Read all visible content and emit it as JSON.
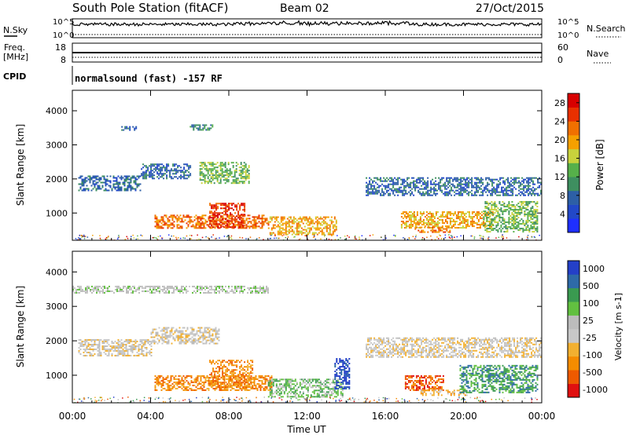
{
  "header": {
    "station": "South Pole Station (fitACF)",
    "beam": "Beam 02",
    "date": "27/Oct/2015"
  },
  "top_panel": {
    "nsky_label": "N.Sky",
    "nsky_ticks": [
      "10^5",
      "10^0"
    ],
    "nsearch_label": "N.Search",
    "nsearch_ticks": [
      "10^5",
      "10^0"
    ],
    "freq_label": "Freq.",
    "freq_unit": "[MHz]",
    "freq_ticks": [
      "18",
      "8"
    ],
    "nave_label": "Nave",
    "nave_ticks": [
      "60",
      "0"
    ],
    "cpid_label": "CPID",
    "cpid_text": "normalsound (fast) -157 RF"
  },
  "colors": {
    "power": [
      "#1e2fff",
      "#2248c8",
      "#2d5fa6",
      "#3e8f60",
      "#56b04a",
      "#c8d23c",
      "#f5a000",
      "#f07000",
      "#e83000",
      "#d80000"
    ],
    "velocity": [
      "#e01010",
      "#ee5a00",
      "#f58c00",
      "#f2b030",
      "#c8c8c8",
      "#bcbcbc",
      "#62c040",
      "#3a9a50",
      "#2e6aa8",
      "#2440c8"
    ]
  },
  "chart_data": [
    {
      "type": "heatmap",
      "panel": "power",
      "xlabel": "Time UT",
      "ylabel": "Slant Range [km]",
      "x_ticks": [
        "00:00",
        "04:00",
        "08:00",
        "12:00",
        "16:00",
        "20:00",
        "00:00"
      ],
      "y_ticks": [
        1000,
        2000,
        3000,
        4000
      ],
      "xlim_hours": [
        0,
        24
      ],
      "ylim_km": [
        200,
        4600
      ],
      "colorbar_label": "Power [dB]",
      "colorbar_ticks": [
        4,
        8,
        12,
        16,
        20,
        24,
        28
      ],
      "colorbar_range": [
        0,
        30
      ],
      "echo_regions": [
        {
          "t0": 0.3,
          "t1": 3.5,
          "r0": 1650,
          "r1": 2100,
          "level": 8
        },
        {
          "t0": 3.5,
          "t1": 6.0,
          "r0": 2000,
          "r1": 2450,
          "level": 8
        },
        {
          "t0": 4.2,
          "t1": 10.0,
          "r0": 550,
          "r1": 950,
          "level": 22
        },
        {
          "t0": 7.0,
          "t1": 8.8,
          "r0": 600,
          "r1": 1300,
          "level": 27
        },
        {
          "t0": 10.0,
          "t1": 13.5,
          "r0": 380,
          "r1": 900,
          "level": 19
        },
        {
          "t0": 6.5,
          "t1": 9.0,
          "r0": 1900,
          "r1": 2500,
          "level": 14
        },
        {
          "t0": 2.5,
          "t1": 3.3,
          "r0": 3450,
          "r1": 3550,
          "level": 7
        },
        {
          "t0": 6.0,
          "t1": 7.2,
          "r0": 3450,
          "r1": 3600,
          "level": 11
        },
        {
          "t0": 15.0,
          "t1": 24.0,
          "r0": 1500,
          "r1": 2050,
          "level": 7
        },
        {
          "t0": 16.8,
          "t1": 21.5,
          "r0": 550,
          "r1": 1050,
          "level": 19
        },
        {
          "t0": 21.0,
          "t1": 23.8,
          "r0": 450,
          "r1": 1350,
          "level": 13
        },
        {
          "t0": 17.5,
          "t1": 19.3,
          "r0": 420,
          "r1": 600,
          "level": 22
        }
      ]
    },
    {
      "type": "heatmap",
      "panel": "velocity",
      "xlabel": "Time UT",
      "ylabel": "Slant Range [km]",
      "x_ticks": [
        "00:00",
        "04:00",
        "08:00",
        "12:00",
        "16:00",
        "20:00",
        "00:00"
      ],
      "y_ticks": [
        1000,
        2000,
        3000,
        4000
      ],
      "xlim_hours": [
        0,
        24
      ],
      "ylim_km": [
        200,
        4600
      ],
      "colorbar_label": "Velocity [m s-1]",
      "colorbar_ticks": [
        "1000",
        "500",
        "100",
        "25",
        "-25",
        "-100",
        "-500",
        "-1000"
      ],
      "echo_regions": [
        {
          "t0": 0.3,
          "t1": 4.0,
          "r0": 1550,
          "r1": 2050,
          "level": 4
        },
        {
          "t0": 4.0,
          "t1": 7.5,
          "r0": 1900,
          "r1": 2400,
          "level": 4
        },
        {
          "t0": 4.2,
          "t1": 10.2,
          "r0": 550,
          "r1": 1000,
          "level": 2
        },
        {
          "t0": 7.0,
          "t1": 9.2,
          "r0": 650,
          "r1": 1450,
          "level": 2
        },
        {
          "t0": 10.0,
          "t1": 13.8,
          "r0": 380,
          "r1": 900,
          "level": 6
        },
        {
          "t0": 13.4,
          "t1": 14.2,
          "r0": 600,
          "r1": 1500,
          "level": 9
        },
        {
          "t0": 0.0,
          "t1": 10.0,
          "r0": 3400,
          "r1": 3600,
          "level": 5
        },
        {
          "t0": 15.0,
          "t1": 24.0,
          "r0": 1550,
          "r1": 2100,
          "level": 4
        },
        {
          "t0": 17.0,
          "t1": 19.0,
          "r0": 550,
          "r1": 1000,
          "level": 1
        },
        {
          "t0": 17.8,
          "t1": 20.2,
          "r0": 400,
          "r1": 580,
          "level": 3
        },
        {
          "t0": 19.8,
          "t1": 23.8,
          "r0": 500,
          "r1": 1300,
          "level": 7
        }
      ]
    }
  ]
}
